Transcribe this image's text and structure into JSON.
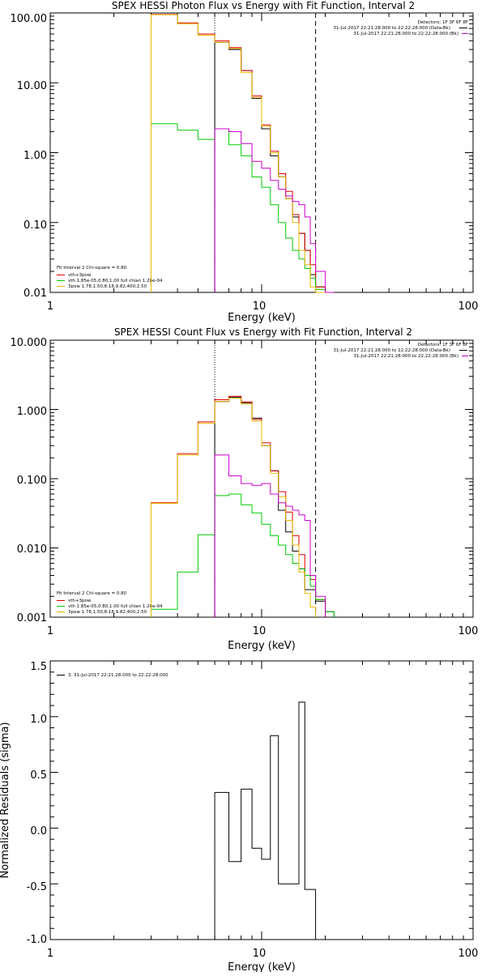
{
  "chart_data": [
    {
      "type": "line",
      "title": "SPEX HESSI Photon Flux vs Energy with Fit Function, Interval 2",
      "xlabel": "Energy (keV)",
      "ylabel": "",
      "xscale": "log",
      "yscale": "log",
      "xlim": [
        1,
        100
      ],
      "ylim": [
        0.01,
        100
      ],
      "xticks": [
        "1",
        "10",
        "100"
      ],
      "yticks": [
        "0.01",
        "0.10",
        "1.00",
        "10.00",
        "100.00"
      ],
      "header_right": [
        "Detectors: 1F 3F 6F 8F",
        "31-Jul-2017 22:21:28.000 to 22:22:28.000 (Data-Bk)",
        "31-Jul-2017 22:21:28.000 to 22:22:28.000 (Bk)"
      ],
      "legend_lines": [
        "Fit Interval 2   Chi-square = 0.80",
        "vth+3pow",
        "vth 1.85e-05,0.80,1.00  full chian 1.26e-04",
        "3pow 1.78,1.50,8.18,9.82,400,2.50"
      ],
      "vlines": [
        {
          "x": 6.0,
          "style": "dotted",
          "color": "#000000"
        },
        {
          "x": 18.0,
          "style": "dashed",
          "color": "#000000"
        }
      ],
      "bin_edges": [
        3.0,
        4.0,
        5.0,
        6.0,
        7.0,
        8.0,
        9.0,
        10.0,
        11.0,
        12.0,
        13.0,
        14.0,
        15.0,
        16.0,
        17.0,
        18.0,
        20.0,
        22.0,
        24.0
      ],
      "series": [
        {
          "name": "data",
          "color": "#000000",
          "start_bin": 3,
          "values": [
            38,
            30,
            15,
            6.0,
            2.2,
            0.9,
            0.45,
            0.22,
            0.12,
            0.07,
            0.04,
            0.018,
            0.012,
            0.006
          ]
        },
        {
          "name": "vth+3pow",
          "color": "#e00000",
          "start_bin": 0,
          "values": [
            95,
            72,
            50,
            40,
            32,
            15,
            6.5,
            2.5,
            1.05,
            0.5,
            0.28,
            0.13,
            0.07,
            0.04,
            0.025,
            0.012
          ]
        },
        {
          "name": "vth",
          "color": "#00cc00",
          "start_bin": 0,
          "values": [
            2.6,
            2.1,
            1.55,
            2.2,
            1.3,
            0.9,
            0.45,
            0.32,
            0.18,
            0.1,
            0.06,
            0.04,
            0.03,
            0.022,
            0.016,
            0.011
          ]
        },
        {
          "name": "3pow",
          "color": "#e6b800",
          "start_bin": 0,
          "values": [
            94,
            70,
            48,
            38,
            31,
            14,
            6.2,
            2.4,
            1.0,
            0.45,
            0.22,
            0.1,
            0.04,
            0.025,
            0.012,
            0.009
          ]
        },
        {
          "name": "bk",
          "color": "#cc00cc",
          "start_bin": 3,
          "values": [
            2.2,
            2.0,
            1.35,
            0.75,
            0.6,
            0.4,
            0.3,
            0.24,
            0.2,
            0.18,
            0.12,
            0.05,
            0.02,
            0.01
          ]
        }
      ]
    },
    {
      "type": "line",
      "title": "SPEX HESSI Count Flux vs Energy with Fit Function, Interval 2",
      "xlabel": "Energy (keV)",
      "ylabel": "",
      "xscale": "log",
      "yscale": "log",
      "xlim": [
        1,
        100
      ],
      "ylim": [
        0.001,
        10
      ],
      "xticks": [
        "1",
        "10",
        "100"
      ],
      "yticks": [
        "0.001",
        "0.010",
        "0.100",
        "1.000",
        "10.000"
      ],
      "header_right": [
        "Detectors: 1F 3F 6F 8F",
        "31-Jul-2017 22:21:28.000 to 22:22:28.000 (Data-Bk)",
        "31-Jul-2017 22:21:28.000 to 22:22:28.000 (Bk)"
      ],
      "legend_lines": [
        "Fit Interval 2   Chi-square = 0.80",
        "vth+3pow",
        "vth 1.85e-05,0.80,1.00  full chian 1.26e-04",
        "3pow 1.78,1.50,8.18,9.82,400,2.50"
      ],
      "vlines": [
        {
          "x": 6.0,
          "style": "dotted",
          "color": "#000000"
        },
        {
          "x": 18.0,
          "style": "dashed",
          "color": "#000000"
        }
      ],
      "bin_edges": [
        3.0,
        4.0,
        5.0,
        6.0,
        7.0,
        8.0,
        9.0,
        10.0,
        11.0,
        12.0,
        13.0,
        14.0,
        15.0,
        16.0,
        17.0,
        18.0,
        20.0,
        22.0,
        24.0
      ],
      "series": [
        {
          "name": "data",
          "color": "#000000",
          "start_bin": 3,
          "values": [
            1.3,
            1.5,
            1.25,
            0.75,
            0.3,
            0.13,
            0.035,
            0.017,
            0.009,
            0.005,
            0.0025,
            0.0025,
            0.0017,
            0.0012
          ]
        },
        {
          "name": "vth+3pow",
          "color": "#e00000",
          "start_bin": 0,
          "values": [
            0.045,
            0.23,
            0.66,
            1.38,
            1.55,
            1.28,
            0.72,
            0.33,
            0.13,
            0.065,
            0.033,
            0.015,
            0.008,
            0.004,
            0.0035,
            0.0018
          ]
        },
        {
          "name": "vth",
          "color": "#00cc00",
          "start_bin": 0,
          "values": [
            0.0013,
            0.0045,
            0.0155,
            0.057,
            0.06,
            0.042,
            0.032,
            0.022,
            0.015,
            0.011,
            0.008,
            0.006,
            0.005,
            0.004,
            0.0028,
            0.0018,
            0.0012
          ]
        },
        {
          "name": "3pow",
          "color": "#e6b800",
          "start_bin": 0,
          "values": [
            0.044,
            0.22,
            0.63,
            1.3,
            1.45,
            1.2,
            0.68,
            0.3,
            0.12,
            0.055,
            0.025,
            0.011,
            0.0045,
            0.0022,
            0.0014
          ]
        },
        {
          "name": "bk",
          "color": "#cc00cc",
          "start_bin": 3,
          "values": [
            0.22,
            0.11,
            0.085,
            0.08,
            0.085,
            0.06,
            0.045,
            0.04,
            0.035,
            0.03,
            0.025,
            0.004,
            0.002
          ]
        }
      ]
    },
    {
      "type": "line",
      "title": "",
      "xlabel": "Energy (keV)",
      "ylabel": "Normalized Residuals (sigma)",
      "xscale": "log",
      "xlim": [
        1,
        100
      ],
      "ylim": [
        -1.0,
        1.5
      ],
      "xticks": [
        "1",
        "10",
        "100"
      ],
      "yticks": [
        "-1.0",
        "-0.5",
        "0.0",
        "0.5",
        "1.0",
        "1.5"
      ],
      "legend": "3. 31-Jul-2017 22:21:28.000 to 22:22:28.000",
      "bin_edges": [
        6.0,
        7.0,
        8.0,
        9.0,
        10.0,
        11.0,
        12.0,
        13.0,
        15.0,
        16.0,
        18.0
      ],
      "series": [
        {
          "name": "residuals",
          "color": "#000000",
          "values": [
            0.32,
            -0.3,
            0.35,
            -0.18,
            -0.28,
            0.83,
            -0.5,
            -0.5,
            1.13,
            -0.55
          ]
        }
      ]
    }
  ]
}
